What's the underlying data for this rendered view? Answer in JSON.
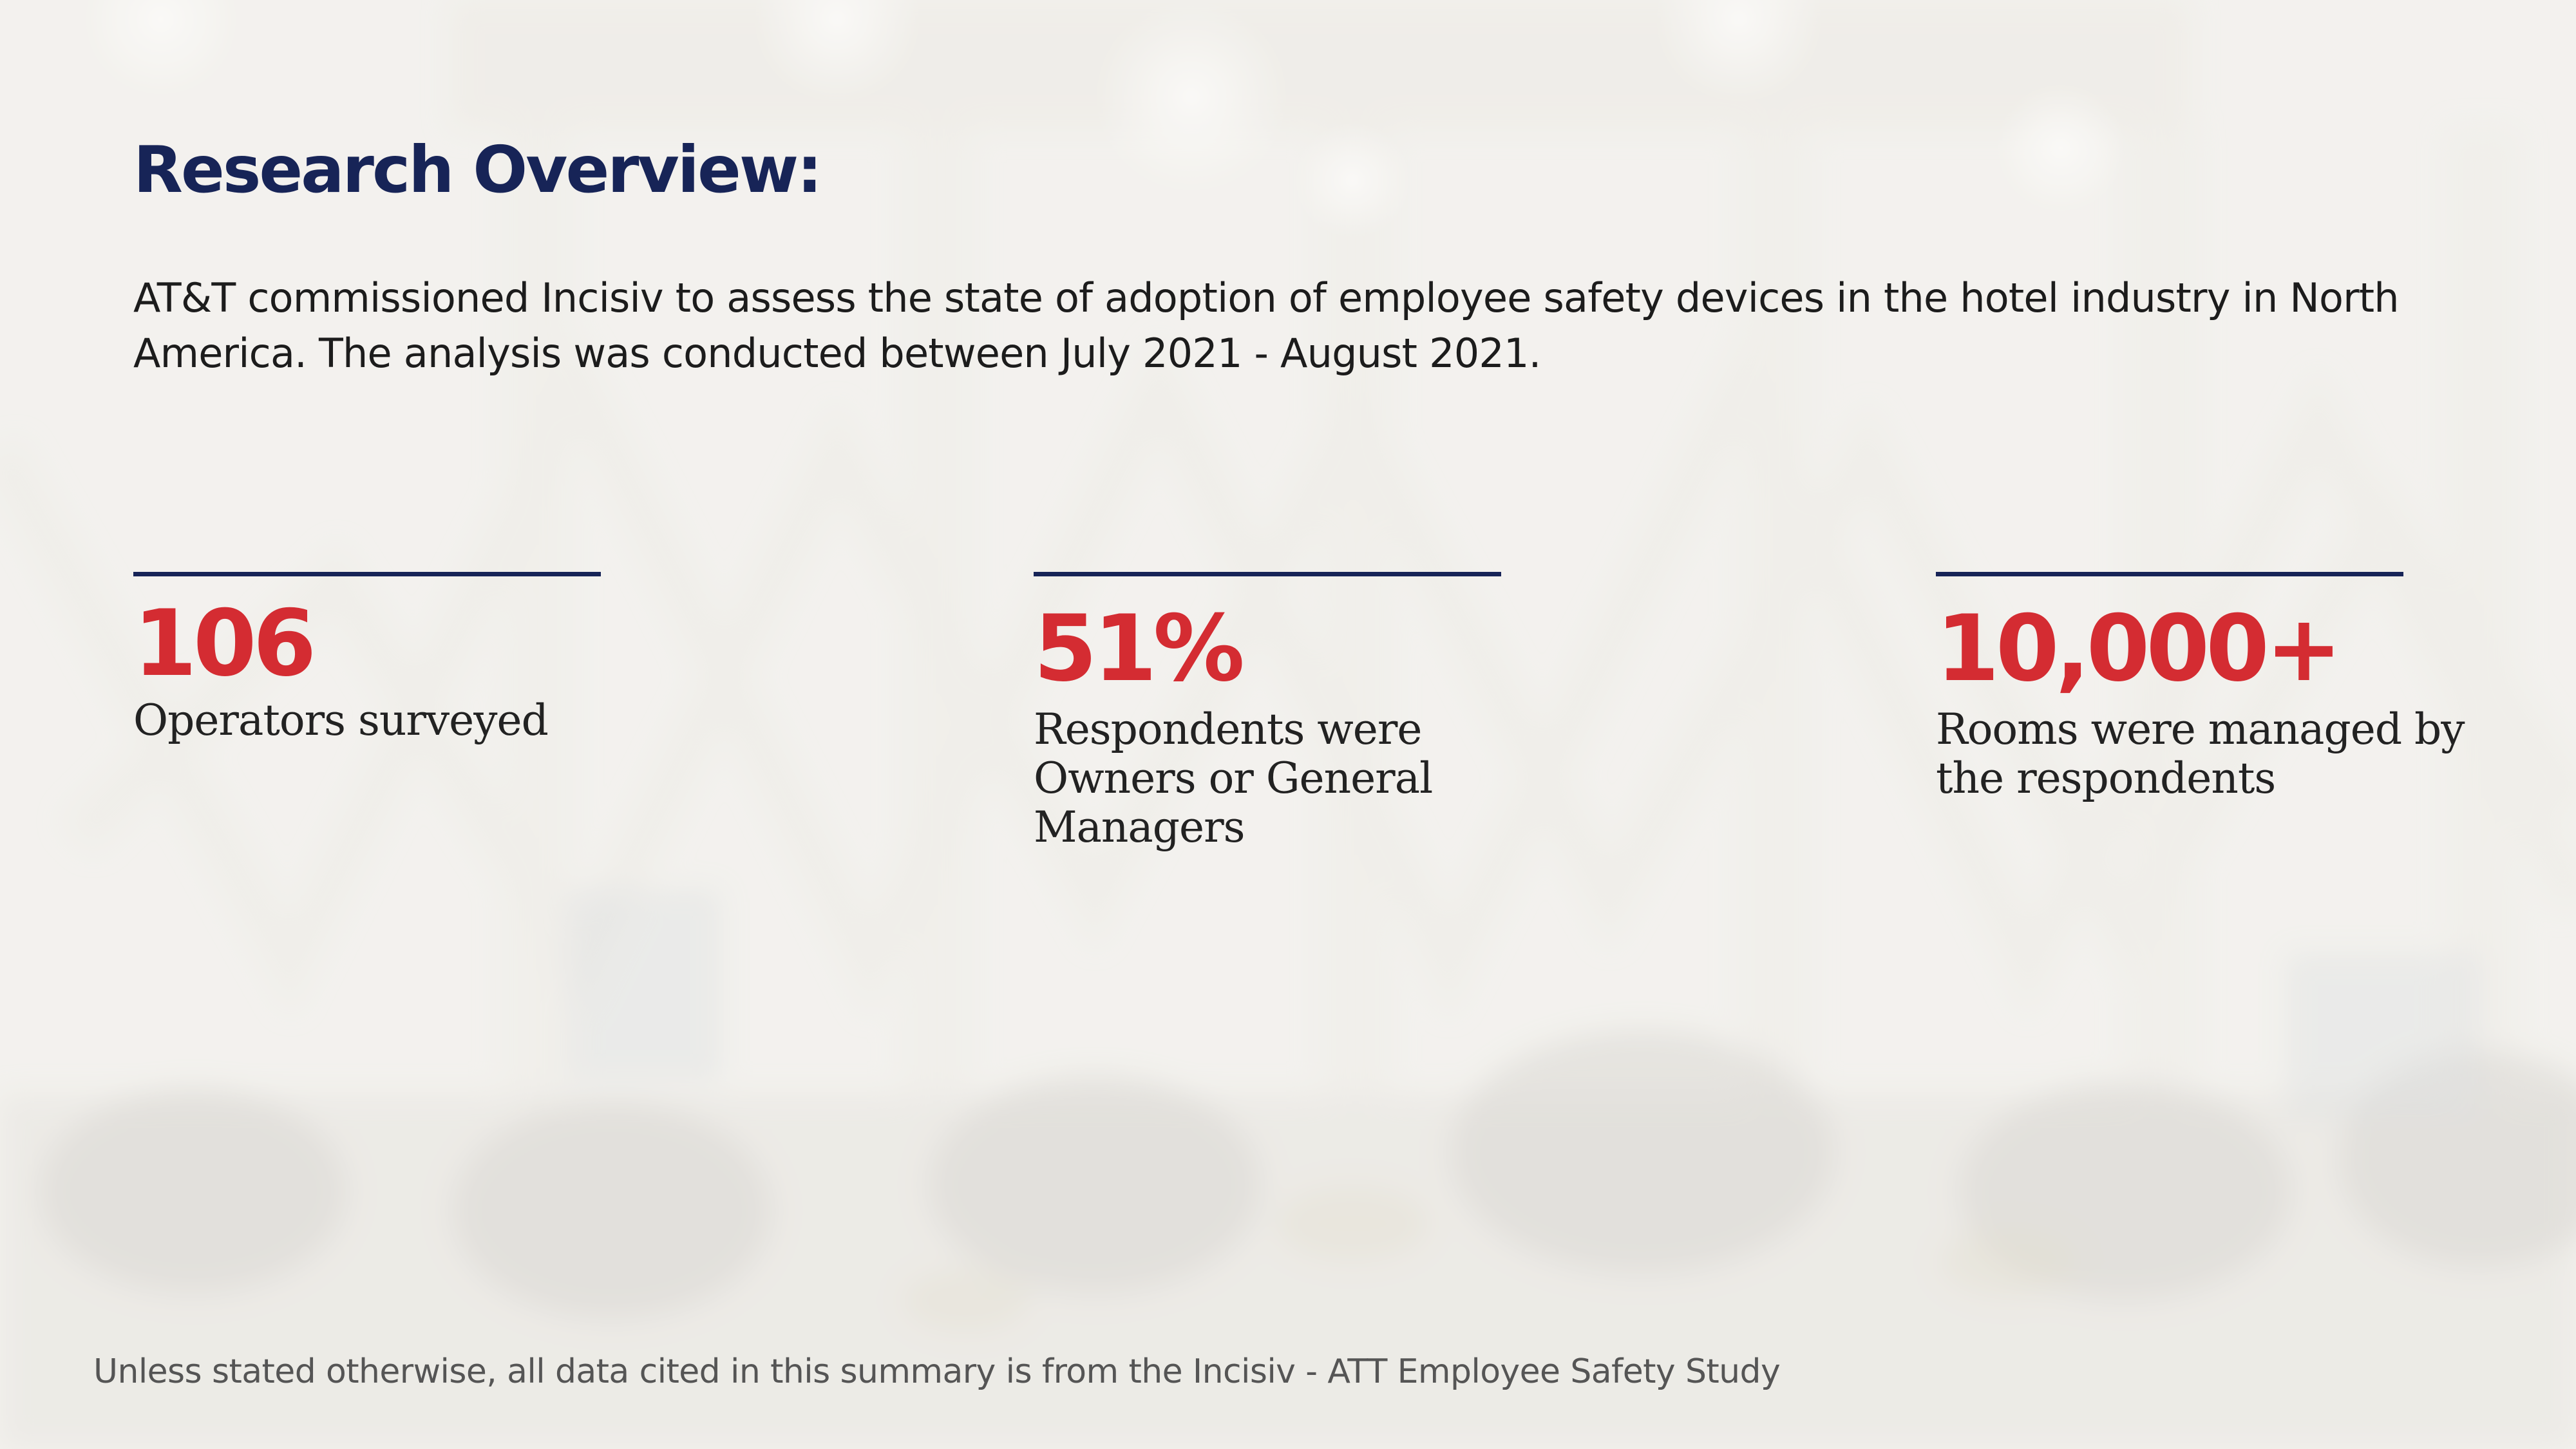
{
  "slide": {
    "title": "Research Overview:",
    "intro": "AT&T commissioned Incisiv to assess the state of adoption of employee safety devices in the hotel industry in North America. The analysis was conducted between July 2021 - August 2021.",
    "stats": [
      {
        "value": "106",
        "label": "Operators surveyed"
      },
      {
        "value": "51%",
        "label": "Respondents were Owners or General Managers"
      },
      {
        "value": "10,000+",
        "label": "Rooms were managed by the respondents"
      }
    ],
    "footnote": "Unless stated otherwise, all data cited in this summary is from the Incisiv - ATT Employee Safety Study"
  },
  "colors": {
    "title": "#172457",
    "accent": "#d42c32",
    "rule": "#172457",
    "background": "#f2f1ee"
  }
}
